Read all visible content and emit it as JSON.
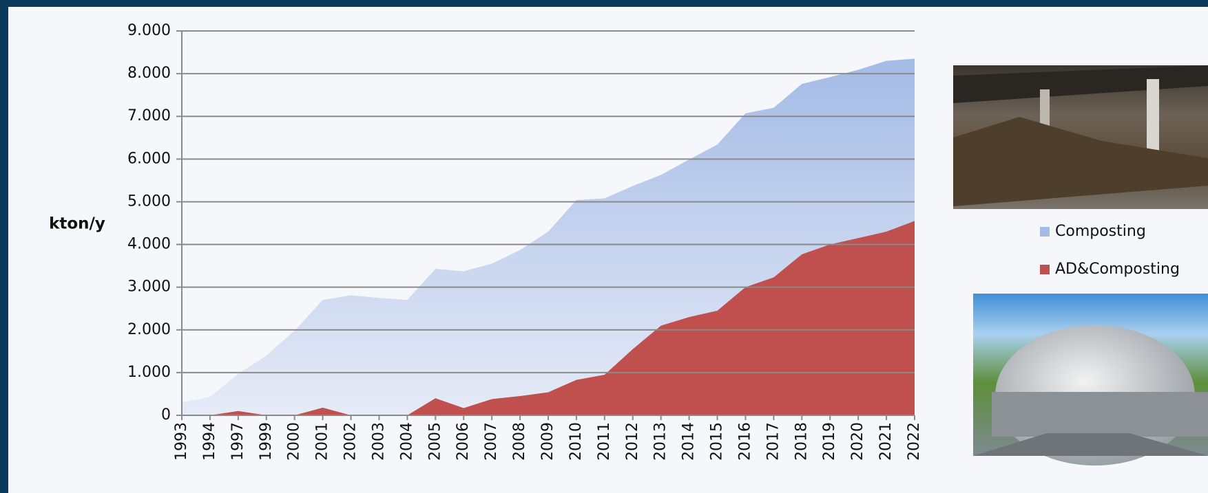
{
  "chart_data": {
    "type": "area",
    "y_label": "kton/y",
    "categories": [
      "1993",
      "1994",
      "1997",
      "1999",
      "2000",
      "2001",
      "2002",
      "2003",
      "2004",
      "2005",
      "2006",
      "2007",
      "2008",
      "2009",
      "2010",
      "2011",
      "2012",
      "2013",
      "2014",
      "2015",
      "2016",
      "2017",
      "2018",
      "2019",
      "2020",
      "2021",
      "2022"
    ],
    "series": [
      {
        "name": "Composting",
        "color": "#a4bbe6",
        "values": [
          300,
          430,
          970,
          1400,
          1980,
          2700,
          2810,
          2750,
          2700,
          3430,
          3370,
          3550,
          3870,
          4300,
          5040,
          5080,
          5370,
          5630,
          5990,
          6340,
          7070,
          7200,
          7760,
          7920,
          8090,
          8300,
          8350
        ]
      },
      {
        "name": "AD&Composting",
        "color": "#c0504d",
        "values": [
          0,
          0,
          100,
          0,
          0,
          180,
          0,
          0,
          0,
          400,
          170,
          380,
          450,
          540,
          830,
          950,
          1550,
          2100,
          2300,
          2450,
          3000,
          3230,
          3770,
          4000,
          4150,
          4300,
          4550
        ]
      }
    ],
    "ylim": [
      0,
      9000
    ],
    "yticks": [
      0,
      {
        "value": 1000,
        "label": "1.000"
      },
      {
        "value": 2000,
        "label": "2.000"
      },
      {
        "value": 3000,
        "label": "3.000"
      },
      {
        "value": 4000,
        "label": "4.000"
      },
      {
        "value": 5000,
        "label": "5.000"
      },
      {
        "value": 6000,
        "label": "6.000"
      },
      {
        "value": 7000,
        "label": "7.000"
      },
      {
        "value": 8000,
        "label": "8.000"
      },
      {
        "value": 9000,
        "label": "9.000"
      }
    ],
    "grid": true,
    "legend": "right"
  }
}
